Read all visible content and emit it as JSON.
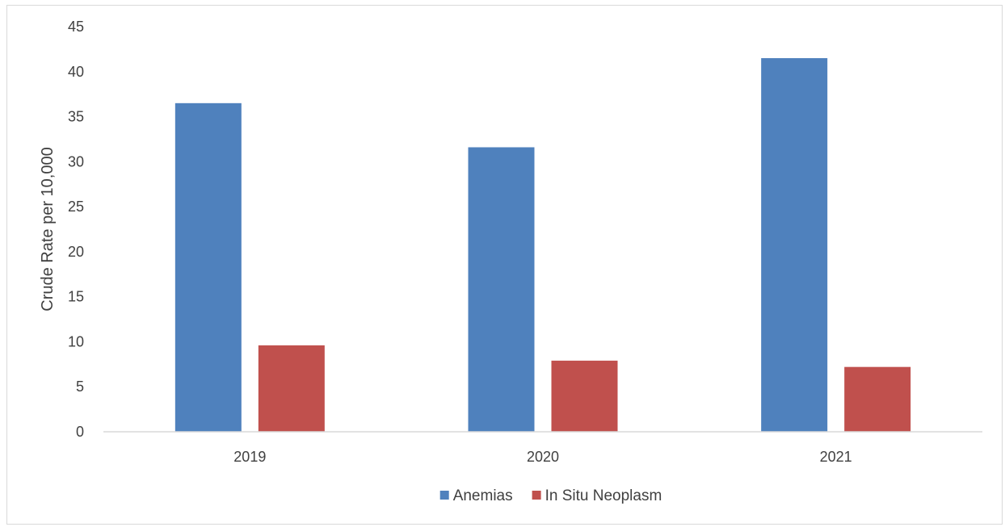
{
  "chart_data": {
    "type": "bar",
    "categories": [
      "2019",
      "2020",
      "2021"
    ],
    "series": [
      {
        "name": "Anemias",
        "values": [
          36.5,
          31.6,
          41.5
        ],
        "color": "#4f81bd"
      },
      {
        "name": "In Situ Neoplasm",
        "values": [
          9.6,
          7.9,
          7.2
        ],
        "color": "#c0504d"
      }
    ],
    "title": "",
    "xlabel": "",
    "ylabel": "Crude Rate per 10,000",
    "ylim": [
      0,
      45
    ],
    "yticks": [
      "0",
      "5",
      "10",
      "15",
      "20",
      "25",
      "30",
      "35",
      "40",
      "45"
    ],
    "grid": false,
    "legend": "bottom-center"
  }
}
